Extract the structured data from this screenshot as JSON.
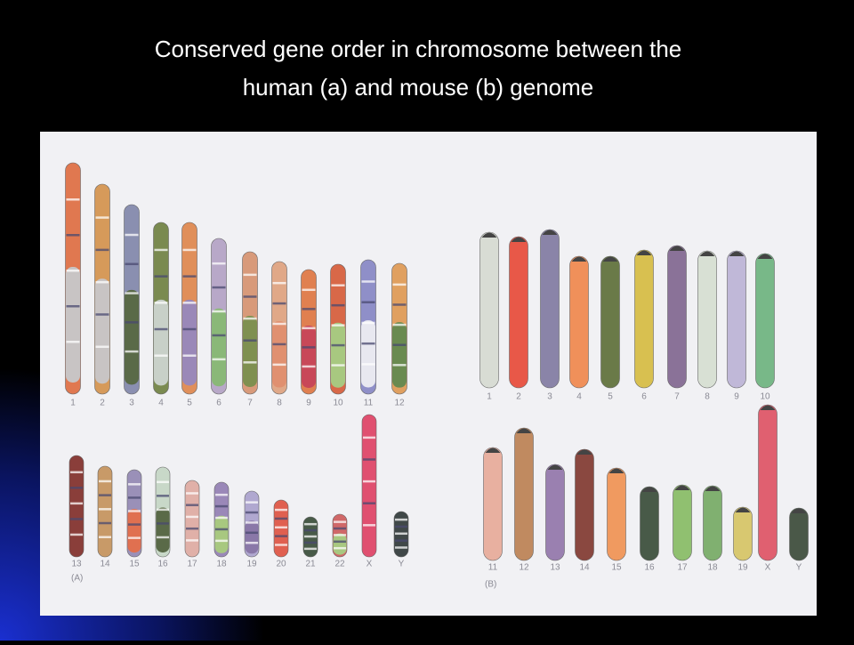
{
  "title": {
    "lines": [
      "Conserved gene order in chromosome between the",
      "human (a) and mouse (b) genome"
    ]
  },
  "figure": {
    "human": {
      "panel_label": "(A)",
      "row1": [
        "1",
        "2",
        "3",
        "4",
        "5",
        "6",
        "7",
        "8",
        "9",
        "10",
        "11",
        "12"
      ],
      "row2": [
        "13",
        "14",
        "15",
        "16",
        "17",
        "18",
        "19",
        "20",
        "21",
        "22",
        "X",
        "Y"
      ]
    },
    "mouse": {
      "panel_label": "(B)",
      "row1": [
        "1",
        "2",
        "3",
        "4",
        "5",
        "6",
        "7",
        "8",
        "9",
        "10"
      ],
      "row2": [
        "11",
        "12",
        "13",
        "14",
        "15",
        "16",
        "17",
        "18",
        "19",
        "X",
        "Y"
      ]
    }
  }
}
